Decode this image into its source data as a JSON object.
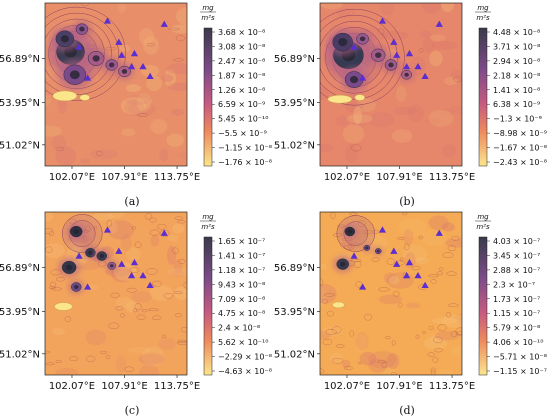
{
  "chart_data": [
    {
      "type": "heatmap",
      "label": "(a)",
      "unit": {
        "num": "mg",
        "den": "m²s"
      },
      "xticks": [
        "102.07°E",
        "107.91°E",
        "113.75°E"
      ],
      "yticks": [
        "56.89°N",
        "53.95°N",
        "51.02°N"
      ],
      "colorbar_ticks": [
        "3.68 × 10⁻⁸",
        "3.08 × 10⁻⁸",
        "2.47 × 10⁻⁸",
        "1.87 × 10⁻⁸",
        "1.26 × 10⁻⁸",
        "6.59 × 10⁻⁹",
        "5.45 × 10⁻¹⁰",
        "−5.5 × 10⁻⁹",
        "−1.15 × 10⁻⁸",
        "−1.76 × 10⁻⁸"
      ],
      "background": "#e88f6a"
    },
    {
      "type": "heatmap",
      "label": "(b)",
      "unit": {
        "num": "mg",
        "den": "m²s"
      },
      "xticks": [
        "102.07°E",
        "107.91°E",
        "113.75°E"
      ],
      "yticks": [
        "56.89°N",
        "53.95°N",
        "51.02°N"
      ],
      "colorbar_ticks": [
        "4.48 × 10⁻⁸",
        "3.71 × 10⁻⁸",
        "2.94 × 10⁻⁸",
        "2.18 × 10⁻⁸",
        "1.41 × 10⁻⁸",
        "6.38 × 10⁻⁹",
        "−1.3 × 10⁻⁹",
        "−8.98 × 10⁻⁹",
        "−1.67 × 10⁻⁸",
        "−2.43 × 10⁻⁸"
      ],
      "background": "#e6866b"
    },
    {
      "type": "heatmap",
      "label": "(c)",
      "unit": {
        "num": "mg",
        "den": "m²s"
      },
      "xticks": [
        "102.07°E",
        "107.91°E",
        "113.75°E"
      ],
      "yticks": [
        "56.89°N",
        "53.95°N",
        "51.02°N"
      ],
      "colorbar_ticks": [
        "1.65 × 10⁻⁷",
        "1.41 × 10⁻⁷",
        "1.18 × 10⁻⁷",
        "9.43 × 10⁻⁸",
        "7.09 × 10⁻⁸",
        "4.75 × 10⁻⁸",
        "2.4 × 10⁻⁸",
        "5.62 × 10⁻¹⁰",
        "−2.29 × 10⁻⁸",
        "−4.63 × 10⁻⁸"
      ],
      "background": "#f3a45c"
    },
    {
      "type": "heatmap",
      "label": "(d)",
      "unit": {
        "num": "mg",
        "den": "m²s"
      },
      "xticks": [
        "102.07°E",
        "107.91°E",
        "113.75°E"
      ],
      "yticks": [
        "56.89°N",
        "53.95°N",
        "51.02°N"
      ],
      "colorbar_ticks": [
        "4.03 × 10⁻⁷",
        "3.45 × 10⁻⁷",
        "2.88 × 10⁻⁷",
        "2.3 × 10⁻⁷",
        "1.73 × 10⁻⁷",
        "1.15 × 10⁻⁷",
        "5.79 × 10⁻⁸",
        "4.06 × 10⁻¹⁰",
        "−5.71 × 10⁻⁸",
        "−1.15 × 10⁻⁷"
      ],
      "background": "#f5ab55"
    }
  ],
  "colors": {
    "cmap_top": "#3a3a4a",
    "cmap_mid": "#c65b80",
    "cmap_bottom": "#fbe68c",
    "marker": "#5a2ed0"
  },
  "stations_marker": "triangle"
}
